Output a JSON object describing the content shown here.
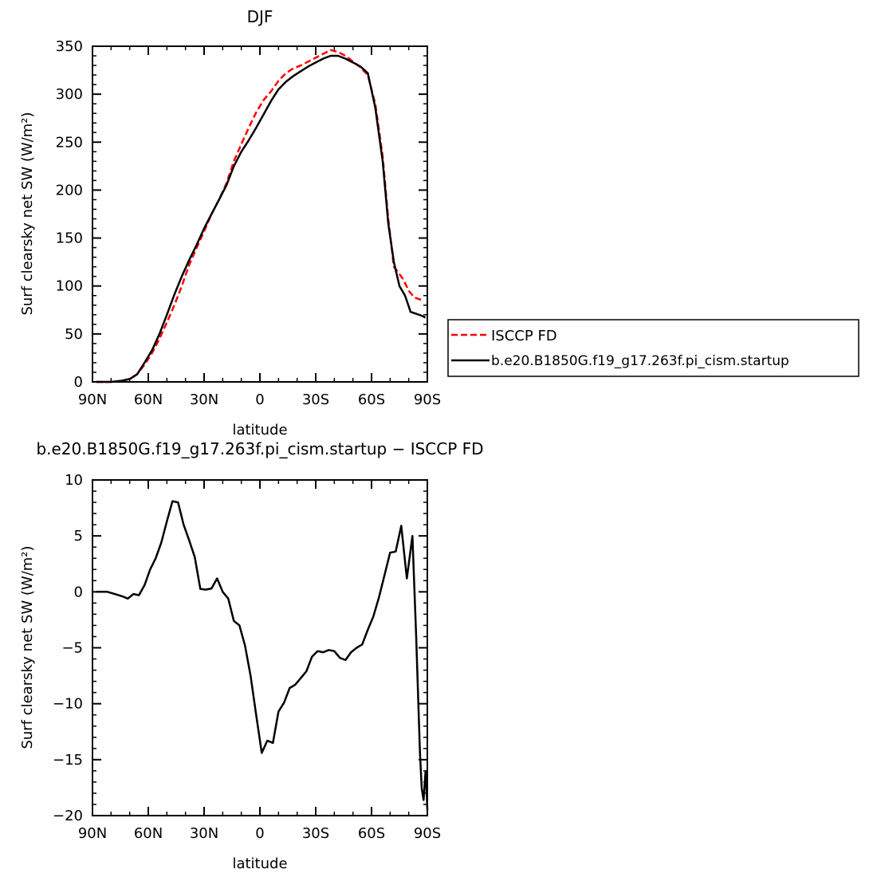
{
  "chart_data": [
    {
      "type": "line",
      "title": "DJF",
      "xlabel": "latitude",
      "ylabel": "Surf clearsky net SW (W/m²)",
      "xlim": [
        90,
        -90
      ],
      "ylim": [
        0,
        350
      ],
      "xticks": [
        {
          "value": 90,
          "label": "90N"
        },
        {
          "value": 60,
          "label": "60N"
        },
        {
          "value": 30,
          "label": "30N"
        },
        {
          "value": 0,
          "label": "0"
        },
        {
          "value": -30,
          "label": "30S"
        },
        {
          "value": -60,
          "label": "60S"
        },
        {
          "value": -90,
          "label": "90S"
        }
      ],
      "yticks": [
        0,
        50,
        100,
        150,
        200,
        250,
        300,
        350
      ],
      "legend_position": "right",
      "series": [
        {
          "name": "ISCCP FD",
          "color": "#ff0000",
          "dash": "dashed",
          "points": [
            [
              88,
              0
            ],
            [
              80,
              0
            ],
            [
              75,
              1
            ],
            [
              70,
              3
            ],
            [
              66,
              8
            ],
            [
              62,
              18
            ],
            [
              58,
              30
            ],
            [
              54,
              45
            ],
            [
              50,
              62
            ],
            [
              46,
              80
            ],
            [
              42,
              100
            ],
            [
              38,
              122
            ],
            [
              34,
              140
            ],
            [
              30,
              157
            ],
            [
              26,
              175
            ],
            [
              22,
              190
            ],
            [
              18,
              207
            ],
            [
              14,
              230
            ],
            [
              10,
              248
            ],
            [
              6,
              265
            ],
            [
              2,
              281
            ],
            [
              -2,
              294
            ],
            [
              -6,
              303
            ],
            [
              -10,
              314
            ],
            [
              -14,
              322
            ],
            [
              -18,
              327
            ],
            [
              -22,
              330
            ],
            [
              -26,
              334
            ],
            [
              -30,
              338
            ],
            [
              -34,
              342
            ],
            [
              -38,
              346
            ],
            [
              -42,
              344
            ],
            [
              -46,
              340
            ],
            [
              -50,
              334
            ],
            [
              -54,
              328
            ],
            [
              -58,
              320
            ],
            [
              -62,
              290
            ],
            [
              -66,
              235
            ],
            [
              -69,
              170
            ],
            [
              -72,
              120
            ],
            [
              -74,
              115
            ],
            [
              -77,
              107
            ],
            [
              -80,
              95
            ],
            [
              -83,
              88
            ],
            [
              -86,
              86
            ],
            [
              -88,
              86
            ]
          ]
        },
        {
          "name": "b.e20.B1850G.f19_g17.263f.pi_cism.startup",
          "color": "#000000",
          "dash": "solid",
          "points": [
            [
              88,
              0
            ],
            [
              80,
              0
            ],
            [
              75,
              1
            ],
            [
              70,
              3
            ],
            [
              66,
              8
            ],
            [
              62,
              20
            ],
            [
              58,
              33
            ],
            [
              54,
              50
            ],
            [
              50,
              70
            ],
            [
              46,
              91
            ],
            [
              42,
              110
            ],
            [
              38,
              127
            ],
            [
              34,
              143
            ],
            [
              30,
              160
            ],
            [
              26,
              175
            ],
            [
              22,
              190
            ],
            [
              18,
              205
            ],
            [
              14,
              225
            ],
            [
              10,
              240
            ],
            [
              6,
              252
            ],
            [
              2,
              265
            ],
            [
              -2,
              279
            ],
            [
              -6,
              293
            ],
            [
              -10,
              305
            ],
            [
              -14,
              313
            ],
            [
              -18,
              319
            ],
            [
              -22,
              324
            ],
            [
              -26,
              329
            ],
            [
              -30,
              333
            ],
            [
              -34,
              337
            ],
            [
              -38,
              340
            ],
            [
              -42,
              340
            ],
            [
              -46,
              337
            ],
            [
              -50,
              333
            ],
            [
              -54,
              329
            ],
            [
              -58,
              322
            ],
            [
              -62,
              286
            ],
            [
              -66,
              230
            ],
            [
              -69,
              165
            ],
            [
              -72,
              125
            ],
            [
              -75,
              100
            ],
            [
              -78,
              90
            ],
            [
              -81,
              73
            ],
            [
              -84,
              71
            ],
            [
              -87,
              69
            ],
            [
              -89,
              67
            ]
          ]
        }
      ]
    },
    {
      "type": "line",
      "title": "b.e20.B1850G.f19_g17.263f.pi_cism.startup − ISCCP FD",
      "xlabel": "latitude",
      "ylabel": "Surf clearsky net SW (W/m²)",
      "xlim": [
        90,
        -90
      ],
      "ylim": [
        -20,
        10
      ],
      "xticks": [
        {
          "value": 90,
          "label": "90N"
        },
        {
          "value": 60,
          "label": "60N"
        },
        {
          "value": 30,
          "label": "30N"
        },
        {
          "value": 0,
          "label": "0"
        },
        {
          "value": -30,
          "label": "30S"
        },
        {
          "value": -60,
          "label": "60S"
        },
        {
          "value": -90,
          "label": "90S"
        }
      ],
      "yticks": [
        10,
        5,
        0,
        -5,
        -10,
        -15,
        -20
      ],
      "series": [
        {
          "color": "#000000",
          "dash": "solid",
          "points": [
            [
              88,
              0
            ],
            [
              82,
              0
            ],
            [
              78,
              -0.2
            ],
            [
              74,
              -0.4
            ],
            [
              71,
              -0.6
            ],
            [
              68,
              -0.2
            ],
            [
              65,
              -0.3
            ],
            [
              62,
              0.6
            ],
            [
              59,
              2
            ],
            [
              56,
              3
            ],
            [
              53,
              4.4
            ],
            [
              50,
              6.3
            ],
            [
              47,
              8.1
            ],
            [
              44,
              8.0
            ],
            [
              41,
              6
            ],
            [
              38,
              4.6
            ],
            [
              35,
              3.1
            ],
            [
              32,
              0.25
            ],
            [
              29,
              0.2
            ],
            [
              26,
              0.3
            ],
            [
              23,
              1.2
            ],
            [
              20,
              0
            ],
            [
              17,
              -0.6
            ],
            [
              14,
              -2.6
            ],
            [
              11,
              -3
            ],
            [
              8,
              -4.8
            ],
            [
              5,
              -7.5
            ],
            [
              2,
              -11
            ],
            [
              -1,
              -14.4
            ],
            [
              -4,
              -13.3
            ],
            [
              -7,
              -13.5
            ],
            [
              -10,
              -10.7
            ],
            [
              -13,
              -9.9
            ],
            [
              -16,
              -8.6
            ],
            [
              -19,
              -8.3
            ],
            [
              -22,
              -7.7
            ],
            [
              -25,
              -7.1
            ],
            [
              -28,
              -5.8
            ],
            [
              -31,
              -5.3
            ],
            [
              -34,
              -5.4
            ],
            [
              -37,
              -5.2
            ],
            [
              -40,
              -5.3
            ],
            [
              -43,
              -5.9
            ],
            [
              -46,
              -6.1
            ],
            [
              -49,
              -5.4
            ],
            [
              -52,
              -5.0
            ],
            [
              -55,
              -4.7
            ],
            [
              -58,
              -3.4
            ],
            [
              -61,
              -2.2
            ],
            [
              -64,
              -0.5
            ],
            [
              -67,
              1.5
            ],
            [
              -70,
              3.5
            ],
            [
              -73,
              3.6
            ],
            [
              -76,
              5.9
            ],
            [
              -79,
              1.2
            ],
            [
              -82,
              5.0
            ],
            [
              -84,
              -4
            ],
            [
              -86,
              -14.3
            ],
            [
              -87,
              -17.6
            ],
            [
              -88,
              -18.6
            ],
            [
              -89,
              -16.1
            ],
            [
              -89.5,
              -17.1
            ],
            [
              -90,
              -19.5
            ]
          ]
        }
      ]
    }
  ]
}
